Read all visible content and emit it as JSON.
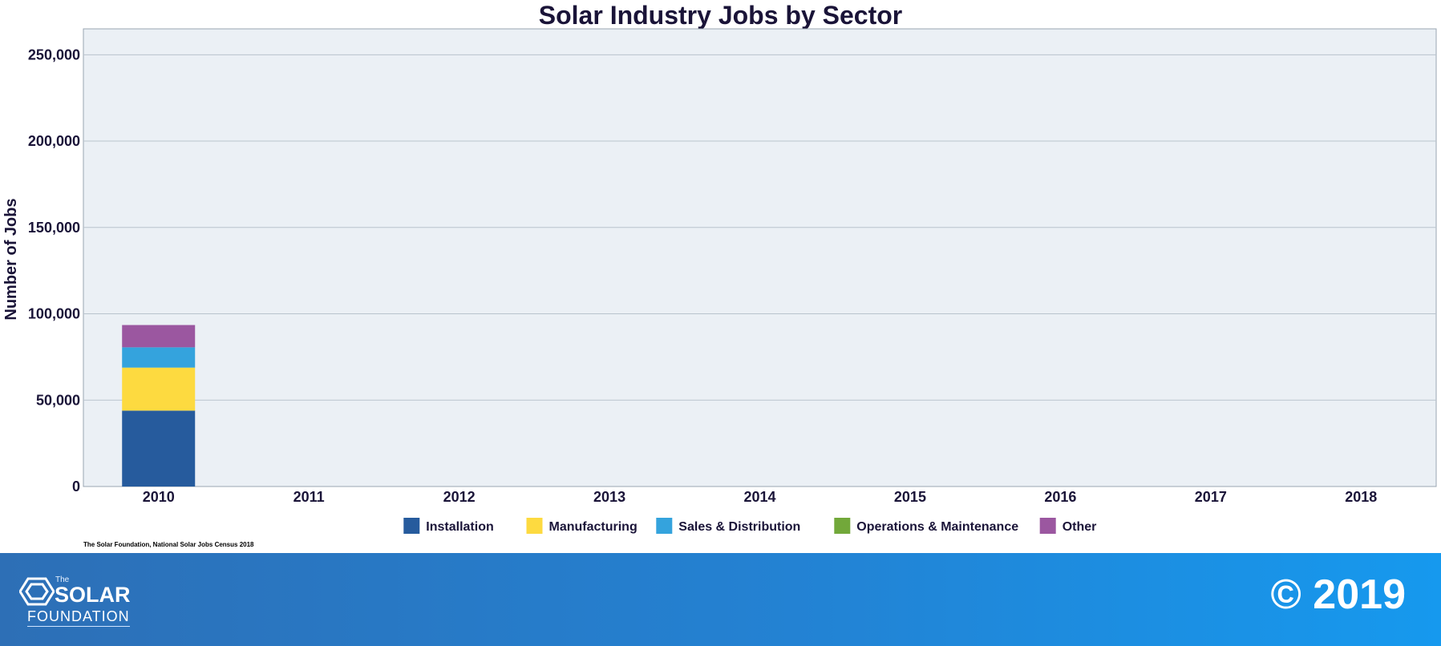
{
  "chart_data": {
    "type": "bar",
    "stacked": true,
    "title": "Solar Industry Jobs by Sector",
    "xlabel": "",
    "ylabel": "Number of Jobs",
    "ylim": [
      0,
      265000
    ],
    "yticks": [
      0,
      50000,
      100000,
      150000,
      200000,
      250000
    ],
    "ytick_labels": [
      "0",
      "50,000",
      "100,000",
      "150,000",
      "200,000",
      "250,000"
    ],
    "grid": true,
    "legend_position": "bottom",
    "categories": [
      "2010",
      "2011",
      "2012",
      "2013",
      "2014",
      "2015",
      "2016",
      "2017",
      "2018"
    ],
    "series": [
      {
        "name": "Installation",
        "color": "#265b9d",
        "values": [
          43934,
          null,
          null,
          null,
          null,
          null,
          null,
          null,
          null
        ]
      },
      {
        "name": "Manufacturing",
        "color": "#fdda40",
        "values": [
          24916,
          null,
          null,
          null,
          null,
          null,
          null,
          null,
          null
        ]
      },
      {
        "name": "Sales & Distribution",
        "color": "#34a3dd",
        "values": [
          11744,
          null,
          null,
          null,
          null,
          null,
          null,
          null,
          null
        ]
      },
      {
        "name": "Operations & Maintenance",
        "color": "#72a83a",
        "values": [
          null,
          null,
          null,
          null,
          null,
          null,
          null,
          null,
          null
        ]
      },
      {
        "name": "Other",
        "color": "#9b57a0",
        "values": [
          12908,
          null,
          null,
          null,
          null,
          null,
          null,
          null,
          null
        ]
      }
    ]
  },
  "source": "The Solar Foundation, National Solar Jobs Census 2018",
  "footer": {
    "logo_the": "The",
    "logo_solar": "SOLAR",
    "logo_foundation": "FOUNDATION",
    "copyright": "© 2019"
  },
  "colors": {
    "plot_background": "#ebf0f5",
    "gridline": "#b9c3cd",
    "title_text": "#1a1438",
    "footer_gradient_start": "#2d6fb6",
    "footer_gradient_end": "#1699ee"
  }
}
